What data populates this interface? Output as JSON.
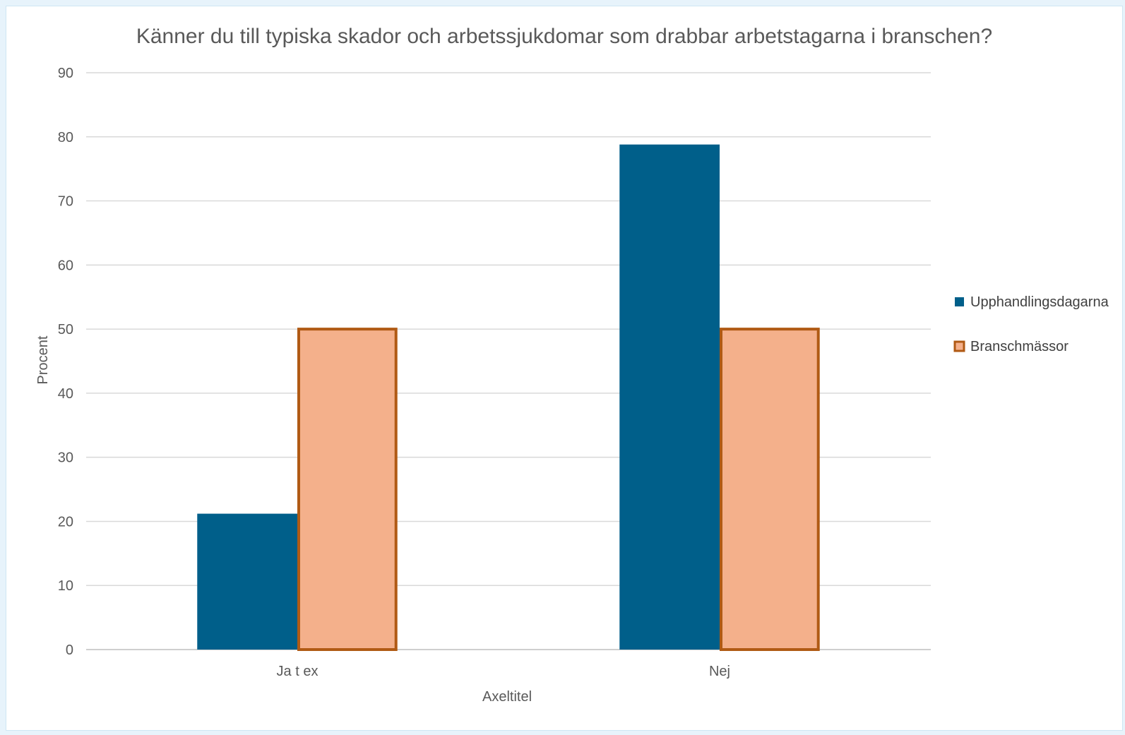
{
  "chart_data": {
    "type": "bar",
    "title": "Känner du till typiska skador och arbetssjukdomar som drabbar arbetstagarna i branschen?",
    "categories": [
      "Ja t ex",
      "Nej"
    ],
    "series": [
      {
        "name": "Upphandlingsdagarna",
        "values": [
          21.2,
          78.8
        ],
        "color": "#005f8a"
      },
      {
        "name": "Branschmässor",
        "values": [
          50,
          50
        ],
        "color": "#f4b08b",
        "border_color": "#b05a14"
      }
    ],
    "xlabel": "Axeltitel",
    "ylabel": "Procent",
    "ylim": [
      0,
      90
    ],
    "yticks": [
      0,
      10,
      20,
      30,
      40,
      50,
      60,
      70,
      80,
      90
    ],
    "grid": true,
    "legend_position": "right"
  }
}
